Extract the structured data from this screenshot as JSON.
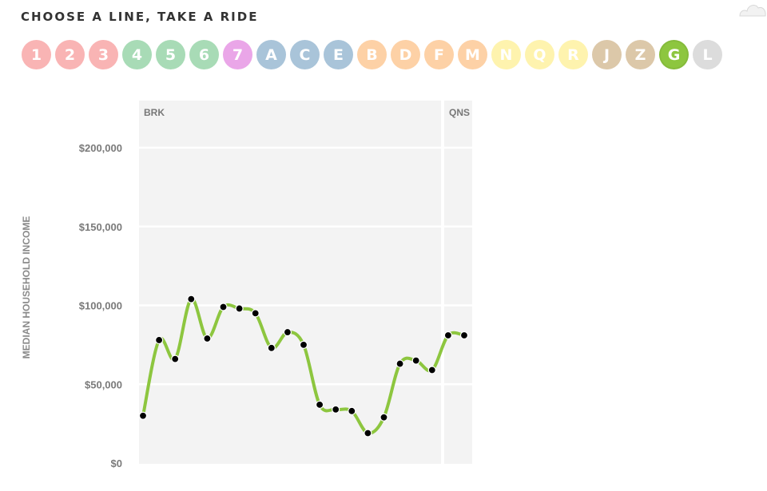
{
  "heading": "CHOOSE A LINE, TAKE A RIDE",
  "lines": [
    {
      "label": "1",
      "color": "#f9b4b4"
    },
    {
      "label": "2",
      "color": "#f9b4b4"
    },
    {
      "label": "3",
      "color": "#f9b4b4"
    },
    {
      "label": "4",
      "color": "#a8dbb6"
    },
    {
      "label": "5",
      "color": "#a8dbb6"
    },
    {
      "label": "6",
      "color": "#a8dbb6"
    },
    {
      "label": "7",
      "color": "#eaa6e8"
    },
    {
      "label": "A",
      "color": "#a9c4d9"
    },
    {
      "label": "C",
      "color": "#a9c4d9"
    },
    {
      "label": "E",
      "color": "#a9c4d9"
    },
    {
      "label": "B",
      "color": "#fdd1a6"
    },
    {
      "label": "D",
      "color": "#fdd1a6"
    },
    {
      "label": "F",
      "color": "#fdd1a6"
    },
    {
      "label": "M",
      "color": "#fdd1a6"
    },
    {
      "label": "N",
      "color": "#fef3ae"
    },
    {
      "label": "Q",
      "color": "#fef3ae"
    },
    {
      "label": "R",
      "color": "#fef3ae"
    },
    {
      "label": "J",
      "color": "#dcc8a9"
    },
    {
      "label": "Z",
      "color": "#dcc8a9"
    },
    {
      "label": "G",
      "color": "#8dc63f"
    },
    {
      "label": "L",
      "color": "#dcdcdc"
    }
  ],
  "selected_line": "G",
  "chart_data": {
    "type": "line",
    "ylabel": "MEDIAN HOUSEHOLD INCOME",
    "ylim": [
      0,
      220000
    ],
    "yticks": [
      0,
      50000,
      100000,
      150000,
      200000
    ],
    "ytick_labels": [
      "$0",
      "$50,000",
      "$100,000",
      "$150,000",
      "$200,000"
    ],
    "grid": true,
    "line_color": "#8dc63f",
    "point_color": "#000000",
    "panel_color": "#f3f3f3",
    "segments": [
      {
        "label": "BRK",
        "stops": 19
      },
      {
        "label": "QNS",
        "stops": 2
      }
    ],
    "series": [
      {
        "values": [
          30000,
          78000,
          66000,
          104000,
          79000,
          99000,
          98000,
          95000,
          73000,
          83000,
          75000,
          37000,
          34000,
          33000,
          19000,
          29000,
          63000,
          65000,
          59000,
          81000,
          81000
        ]
      }
    ]
  }
}
